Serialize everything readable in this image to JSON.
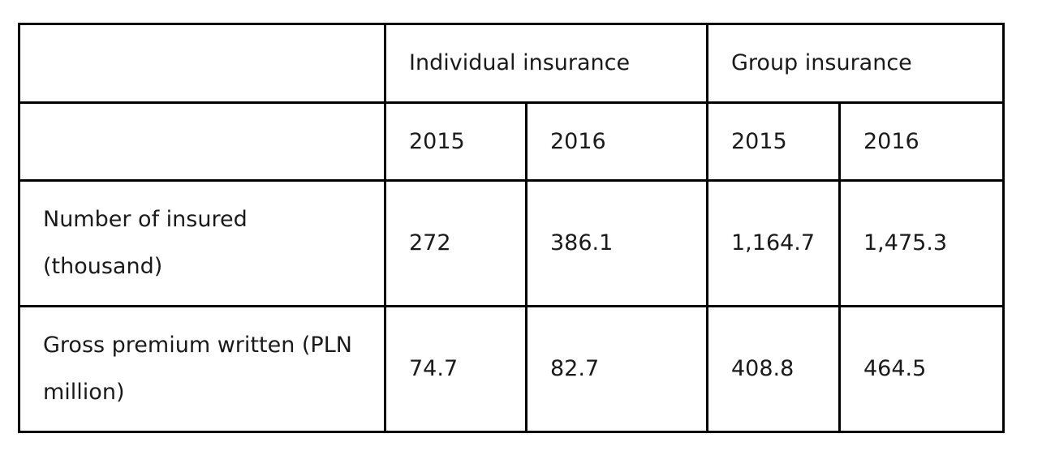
{
  "table": {
    "group_headers": [
      "",
      "Individual insurance",
      "Group insurance"
    ],
    "year_headers": [
      "",
      "2015",
      "2016",
      "2015",
      "2016"
    ],
    "rows": [
      {
        "label": "Number of insured (thousand)",
        "values": [
          "272",
          "386.1",
          "1,164.7",
          "1,475.3"
        ]
      },
      {
        "label": "Gross premium written (PLN million)",
        "values": [
          "74.7",
          "82.7",
          "408.8",
          "464.5"
        ]
      }
    ]
  }
}
